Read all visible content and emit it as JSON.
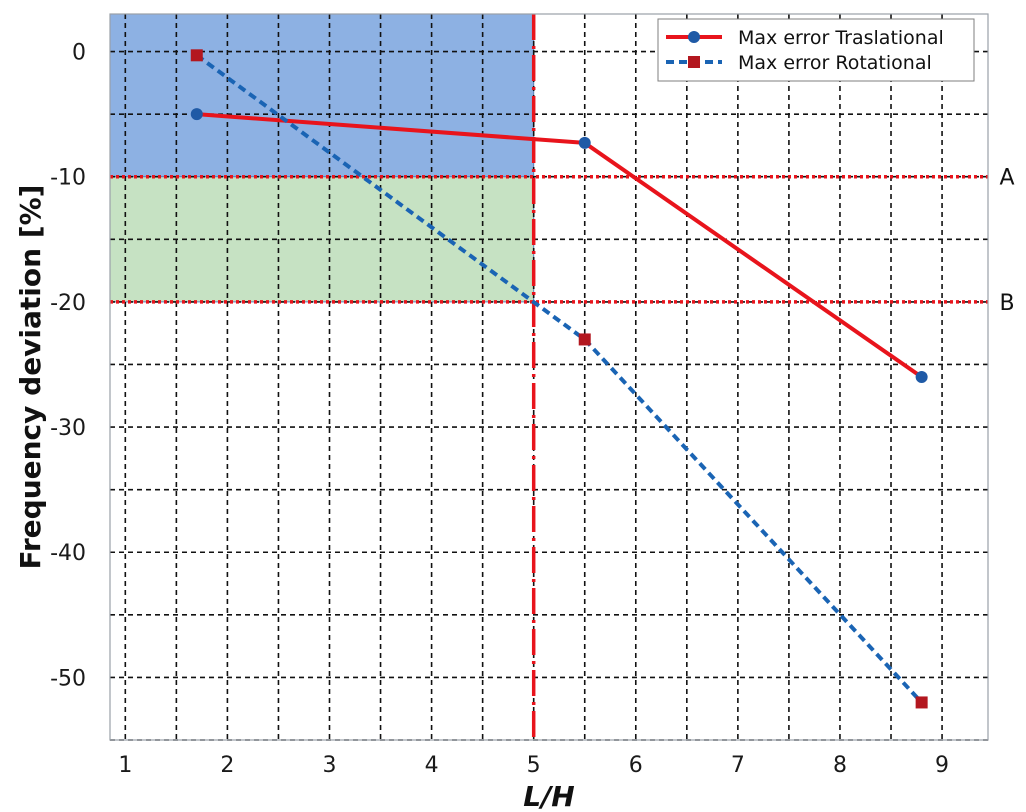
{
  "chart_data": {
    "type": "line",
    "xlabel": "L/H",
    "ylabel": "Frequency deviation [%]",
    "xlim": [
      0.85,
      9.45
    ],
    "ylim": [
      -55,
      3
    ],
    "xticks": [
      1,
      2,
      3,
      4,
      5,
      6,
      7,
      8,
      9
    ],
    "yticks": [
      0,
      -10,
      -20,
      -30,
      -40,
      -50
    ],
    "grid": true,
    "legend_position": "top-right",
    "series": [
      {
        "name": "Max error Traslational",
        "x": [
          1.7,
          5.5,
          8.8
        ],
        "y": [
          -5,
          -7.3,
          -26
        ],
        "color": "#e8141c",
        "line_style": "solid",
        "marker": "circle",
        "marker_color": "#1f5aa6"
      },
      {
        "name": "Max error Rotational",
        "x": [
          1.7,
          5.5,
          8.8
        ],
        "y": [
          -0.3,
          -23,
          -52
        ],
        "color": "#1a64b4",
        "line_style": "dashed",
        "marker": "square",
        "marker_color": "#b3171f"
      }
    ],
    "regions": [
      {
        "x": [
          0.85,
          5
        ],
        "y": [
          -10,
          3
        ],
        "color": "#8db1e3"
      },
      {
        "x": [
          0.85,
          5
        ],
        "y": [
          -20,
          -10
        ],
        "color": "#c6e2c3"
      }
    ],
    "reference_lines": [
      {
        "axis": "y",
        "value": -10,
        "label": "A",
        "color": "#e8141c",
        "style": "dotted"
      },
      {
        "axis": "y",
        "value": -20,
        "label": "B",
        "color": "#e8141c",
        "style": "dotted"
      },
      {
        "axis": "x",
        "value": 5,
        "label": "",
        "color": "#e8141c",
        "style": "dashdot"
      }
    ]
  }
}
